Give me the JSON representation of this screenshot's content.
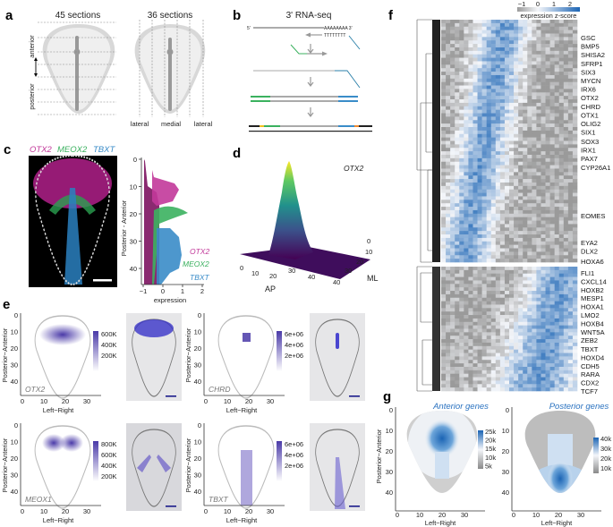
{
  "panels": {
    "a": {
      "label": "a",
      "left_title": "45 sections",
      "right_title": "36 sections",
      "axis_anterior": "anterior",
      "axis_posterior": "posterior",
      "lateral_left": "lateral",
      "medial": "medial",
      "lateral_right": "lateral"
    },
    "b": {
      "label": "b",
      "title": "3' RNA-seq",
      "five_prime": "5'",
      "three_prime": "3'",
      "polyA": "AAAAAAAA 3'",
      "polyT": "TTTTTTTT"
    },
    "c": {
      "label": "c",
      "title_otx2": "OTX2",
      "title_meox2": "MEOX2",
      "title_tbxt": "TBXT",
      "ylabel": "Posterior - Anterior",
      "xlabel": "expression",
      "yticks": [
        "0",
        "10",
        "20",
        "30",
        "40"
      ],
      "xticks": [
        "−1",
        "0",
        "1",
        "2"
      ],
      "legend": [
        "OTX2",
        "MEOX2",
        "TBXT"
      ],
      "colors": {
        "otx2": "#c2399a",
        "meox2": "#3bb15f",
        "tbxt": "#3a8cc8"
      }
    },
    "d": {
      "label": "d",
      "gene": "OTX2",
      "xlabel": "AP",
      "ylabel": "ML",
      "ap_ticks": [
        "0",
        "10",
        "20",
        "30",
        "40"
      ],
      "ml_ticks": [
        "0",
        "10",
        "20",
        "30",
        "40"
      ]
    },
    "e": {
      "label": "e",
      "ylabel": "Posterior−Anterior",
      "xlabel": "Left−Right",
      "yticks": [
        "0",
        "10",
        "20",
        "30",
        "40"
      ],
      "xticks": [
        "0",
        "10",
        "20",
        "30"
      ],
      "plots": [
        {
          "gene": "OTX2",
          "legend": [
            "600K",
            "400K",
            "200K"
          ]
        },
        {
          "gene": "CHRD",
          "legend": [
            "6e+06",
            "4e+06",
            "2e+06"
          ]
        },
        {
          "gene": "MEOX1",
          "legend": [
            "800K",
            "600K",
            "400K",
            "200K"
          ]
        },
        {
          "gene": "TBXT",
          "legend": [
            "6e+06",
            "4e+06",
            "2e+06"
          ]
        }
      ],
      "color": "#5b4bb5"
    },
    "f": {
      "label": "f",
      "colorbar_ticks": [
        "−1",
        "0",
        "1",
        "2"
      ],
      "colorbar_title": "expression z-score",
      "genes_top": [
        "GSC",
        "BMP5",
        "SHISA2",
        "SFRP1",
        "SIX3",
        "MYCN",
        "IRX6",
        "OTX2",
        "CHRD",
        "OTX1",
        "OLIG2",
        "SIX1",
        "SOX3",
        "IRX1",
        "PAX7",
        "CYP26A1",
        "EOMES",
        "EYA2",
        "DLX2",
        "HOXA6"
      ],
      "genes_bottom": [
        "FLI1",
        "CXCL14",
        "HOXB2",
        "MESP1",
        "HOXA1",
        "LMO2",
        "HOXB4",
        "WNT5A",
        "ZEB2",
        "TBXT",
        "HOXD4",
        "CDH5",
        "RARA",
        "CDX2",
        "TCF7"
      ],
      "colors": {
        "low": "#9a9a9a",
        "mid": "#f4f6fa",
        "high": "#1b64b4"
      }
    },
    "g": {
      "label": "g",
      "ylabel": "Posterior−Anterior",
      "xlabel": "Left−Right",
      "yticks": [
        "0",
        "10",
        "20",
        "30",
        "40"
      ],
      "xticks": [
        "0",
        "10",
        "20",
        "30"
      ],
      "left_title": "Anterior genes",
      "left_legend": [
        "25k",
        "20k",
        "15k",
        "10k",
        "5k"
      ],
      "right_title": "Posterior genes",
      "right_legend": [
        "40k",
        "30k",
        "20k",
        "10k"
      ]
    }
  }
}
